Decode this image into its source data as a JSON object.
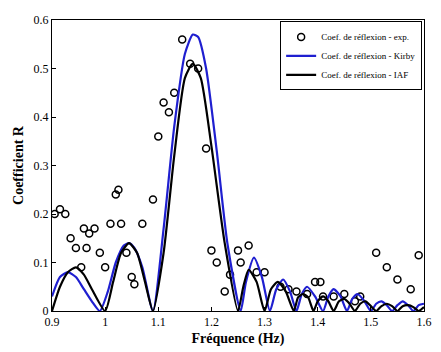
{
  "chart_data": {
    "type": "line",
    "x_label": "Fréquence (Hz)",
    "y_label": "Coefficient R",
    "xlim": [
      0.9,
      1.6
    ],
    "xticks": [
      0.9,
      1,
      1.1,
      1.2,
      1.3,
      1.4,
      1.5,
      1.6
    ],
    "ylim": [
      0,
      0.6
    ],
    "yticks": [
      0,
      0.1,
      0.2,
      0.3,
      0.4,
      0.5,
      0.6
    ],
    "grid": false,
    "legend": "top right",
    "series": [
      {
        "name": "Coef. de réflexion - exp.",
        "type": "scatter",
        "color": "#000000",
        "marker": "circle-open",
        "x": [
          0.905,
          0.915,
          0.925,
          0.935,
          0.945,
          0.955,
          0.96,
          0.965,
          0.97,
          0.98,
          0.99,
          1.0,
          1.01,
          1.02,
          1.025,
          1.03,
          1.04,
          1.05,
          1.055,
          1.07,
          1.09,
          1.1,
          1.11,
          1.12,
          1.13,
          1.145,
          1.16,
          1.175,
          1.19,
          1.2,
          1.21,
          1.225,
          1.235,
          1.25,
          1.255,
          1.27,
          1.285,
          1.3,
          1.33,
          1.345,
          1.36,
          1.38,
          1.395,
          1.405,
          1.41,
          1.43,
          1.45,
          1.47,
          1.48,
          1.51,
          1.53,
          1.55,
          1.575,
          1.59
        ],
        "values": [
          0.2,
          0.21,
          0.2,
          0.15,
          0.13,
          0.09,
          0.17,
          0.13,
          0.16,
          0.17,
          0.12,
          0.09,
          0.18,
          0.24,
          0.25,
          0.18,
          0.12,
          0.07,
          0.055,
          0.18,
          0.23,
          0.36,
          0.43,
          0.41,
          0.45,
          0.56,
          0.51,
          0.5,
          0.335,
          0.125,
          0.1,
          0.04,
          0.075,
          0.125,
          0.1,
          0.135,
          0.08,
          0.08,
          0.05,
          0.045,
          0.04,
          0.035,
          0.06,
          0.06,
          0.03,
          0.03,
          0.035,
          0.02,
          0.03,
          0.12,
          0.09,
          0.065,
          0.045,
          0.115
        ]
      },
      {
        "name": "Coef. de réflexion - Kirby",
        "type": "line",
        "color": "#1f1fd0",
        "line_style": "solid",
        "x": [
          0.9,
          0.915,
          0.93,
          0.945,
          0.96,
          0.975,
          0.99,
          1.005,
          1.02,
          1.035,
          1.045,
          1.055,
          1.07,
          1.09,
          1.11,
          1.13,
          1.15,
          1.165,
          1.175,
          1.19,
          1.21,
          1.23,
          1.255,
          1.265,
          1.28,
          1.295,
          1.31,
          1.322,
          1.335,
          1.348,
          1.36,
          1.37,
          1.38,
          1.395,
          1.41,
          1.42,
          1.43,
          1.443,
          1.455,
          1.465,
          1.475,
          1.488,
          1.5,
          1.51,
          1.52,
          1.53,
          1.54,
          1.55,
          1.56,
          1.57,
          1.58,
          1.59,
          1.6
        ],
        "values": [
          0.03,
          0.07,
          0.08,
          0.07,
          0.045,
          0.02,
          0,
          0.04,
          0.1,
          0.135,
          0.14,
          0.13,
          0.09,
          0,
          0.17,
          0.38,
          0.53,
          0.57,
          0.565,
          0.5,
          0.33,
          0.14,
          0,
          0.06,
          0.11,
          0.07,
          0,
          0.045,
          0.065,
          0.04,
          0,
          0.035,
          0.05,
          0.03,
          0,
          0.03,
          0.045,
          0.03,
          0,
          0.025,
          0.035,
          0.02,
          0,
          0.015,
          0.02,
          0.012,
          0,
          0.012,
          0.02,
          0.012,
          0,
          0.012,
          0.015
        ]
      },
      {
        "name": "Coef. de réflexion - IAF",
        "type": "line",
        "color": "#000000",
        "line_style": "solid",
        "x": [
          0.9,
          0.915,
          0.93,
          0.945,
          0.96,
          0.975,
          1.0,
          1.015,
          1.03,
          1.045,
          1.06,
          1.075,
          1.09,
          1.11,
          1.13,
          1.15,
          1.165,
          1.18,
          1.2,
          1.225,
          1.25,
          1.26,
          1.27,
          1.285,
          1.3,
          1.312,
          1.325,
          1.34,
          1.355,
          1.363,
          1.372,
          1.382,
          1.392,
          1.4,
          1.41,
          1.42,
          1.43,
          1.44,
          1.45,
          1.46,
          1.47,
          1.48,
          1.49,
          1.5,
          1.51,
          1.52,
          1.53,
          1.54,
          1.55,
          1.56,
          1.57,
          1.58,
          1.59,
          1.6
        ],
        "values": [
          0,
          0.05,
          0.08,
          0.09,
          0.075,
          0.045,
          0,
          0.06,
          0.12,
          0.14,
          0.12,
          0.06,
          0,
          0.12,
          0.32,
          0.48,
          0.51,
          0.48,
          0.34,
          0.14,
          0,
          0.05,
          0.085,
          0.06,
          0,
          0.045,
          0.06,
          0.04,
          0,
          0.028,
          0.035,
          0.028,
          0,
          0.02,
          0.03,
          0.02,
          0,
          0.02,
          0.025,
          0.015,
          0,
          0.015,
          0.02,
          0.01,
          0,
          0.01,
          0.015,
          0.01,
          0,
          0.01,
          0.012,
          0.008,
          0,
          0.008
        ]
      }
    ]
  }
}
